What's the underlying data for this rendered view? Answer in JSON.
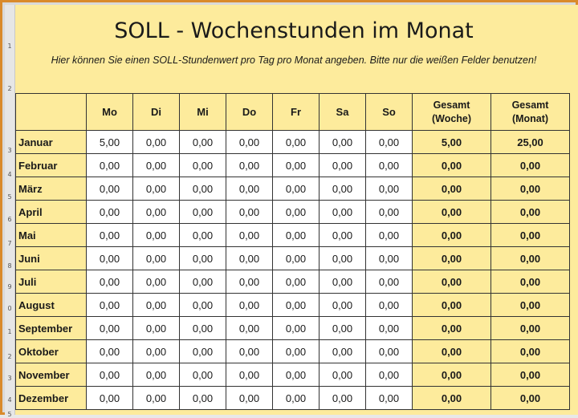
{
  "title": "SOLL - Wochenstunden im Monat",
  "subtitle": "Hier können Sie einen SOLL-Stundenwert pro Tag pro Monat angeben. Bitte nur die weißen Felder benutzen!",
  "row_numbers": [
    "1",
    "2",
    "3",
    "4",
    "5",
    "6",
    "7",
    "8",
    "9",
    "0",
    "1",
    "2",
    "3",
    "4",
    "5"
  ],
  "headers": {
    "days": [
      "Mo",
      "Di",
      "Mi",
      "Do",
      "Fr",
      "Sa",
      "So"
    ],
    "total_week": [
      "Gesamt",
      "(Woche)"
    ],
    "total_month": [
      "Gesamt",
      "(Monat)"
    ]
  },
  "rows": [
    {
      "month": "Januar",
      "days": [
        "5,00",
        "0,00",
        "0,00",
        "0,00",
        "0,00",
        "0,00",
        "0,00"
      ],
      "week": "5,00",
      "total": "25,00"
    },
    {
      "month": "Februar",
      "days": [
        "0,00",
        "0,00",
        "0,00",
        "0,00",
        "0,00",
        "0,00",
        "0,00"
      ],
      "week": "0,00",
      "total": "0,00"
    },
    {
      "month": "März",
      "days": [
        "0,00",
        "0,00",
        "0,00",
        "0,00",
        "0,00",
        "0,00",
        "0,00"
      ],
      "week": "0,00",
      "total": "0,00"
    },
    {
      "month": "April",
      "days": [
        "0,00",
        "0,00",
        "0,00",
        "0,00",
        "0,00",
        "0,00",
        "0,00"
      ],
      "week": "0,00",
      "total": "0,00"
    },
    {
      "month": "Mai",
      "days": [
        "0,00",
        "0,00",
        "0,00",
        "0,00",
        "0,00",
        "0,00",
        "0,00"
      ],
      "week": "0,00",
      "total": "0,00"
    },
    {
      "month": "Juni",
      "days": [
        "0,00",
        "0,00",
        "0,00",
        "0,00",
        "0,00",
        "0,00",
        "0,00"
      ],
      "week": "0,00",
      "total": "0,00"
    },
    {
      "month": "Juli",
      "days": [
        "0,00",
        "0,00",
        "0,00",
        "0,00",
        "0,00",
        "0,00",
        "0,00"
      ],
      "week": "0,00",
      "total": "0,00"
    },
    {
      "month": "August",
      "days": [
        "0,00",
        "0,00",
        "0,00",
        "0,00",
        "0,00",
        "0,00",
        "0,00"
      ],
      "week": "0,00",
      "total": "0,00"
    },
    {
      "month": "September",
      "days": [
        "0,00",
        "0,00",
        "0,00",
        "0,00",
        "0,00",
        "0,00",
        "0,00"
      ],
      "week": "0,00",
      "total": "0,00"
    },
    {
      "month": "Oktober",
      "days": [
        "0,00",
        "0,00",
        "0,00",
        "0,00",
        "0,00",
        "0,00",
        "0,00"
      ],
      "week": "0,00",
      "total": "0,00"
    },
    {
      "month": "November",
      "days": [
        "0,00",
        "0,00",
        "0,00",
        "0,00",
        "0,00",
        "0,00",
        "0,00"
      ],
      "week": "0,00",
      "total": "0,00"
    },
    {
      "month": "Dezember",
      "days": [
        "0,00",
        "0,00",
        "0,00",
        "0,00",
        "0,00",
        "0,00",
        "0,00"
      ],
      "week": "0,00",
      "total": "0,00"
    }
  ]
}
